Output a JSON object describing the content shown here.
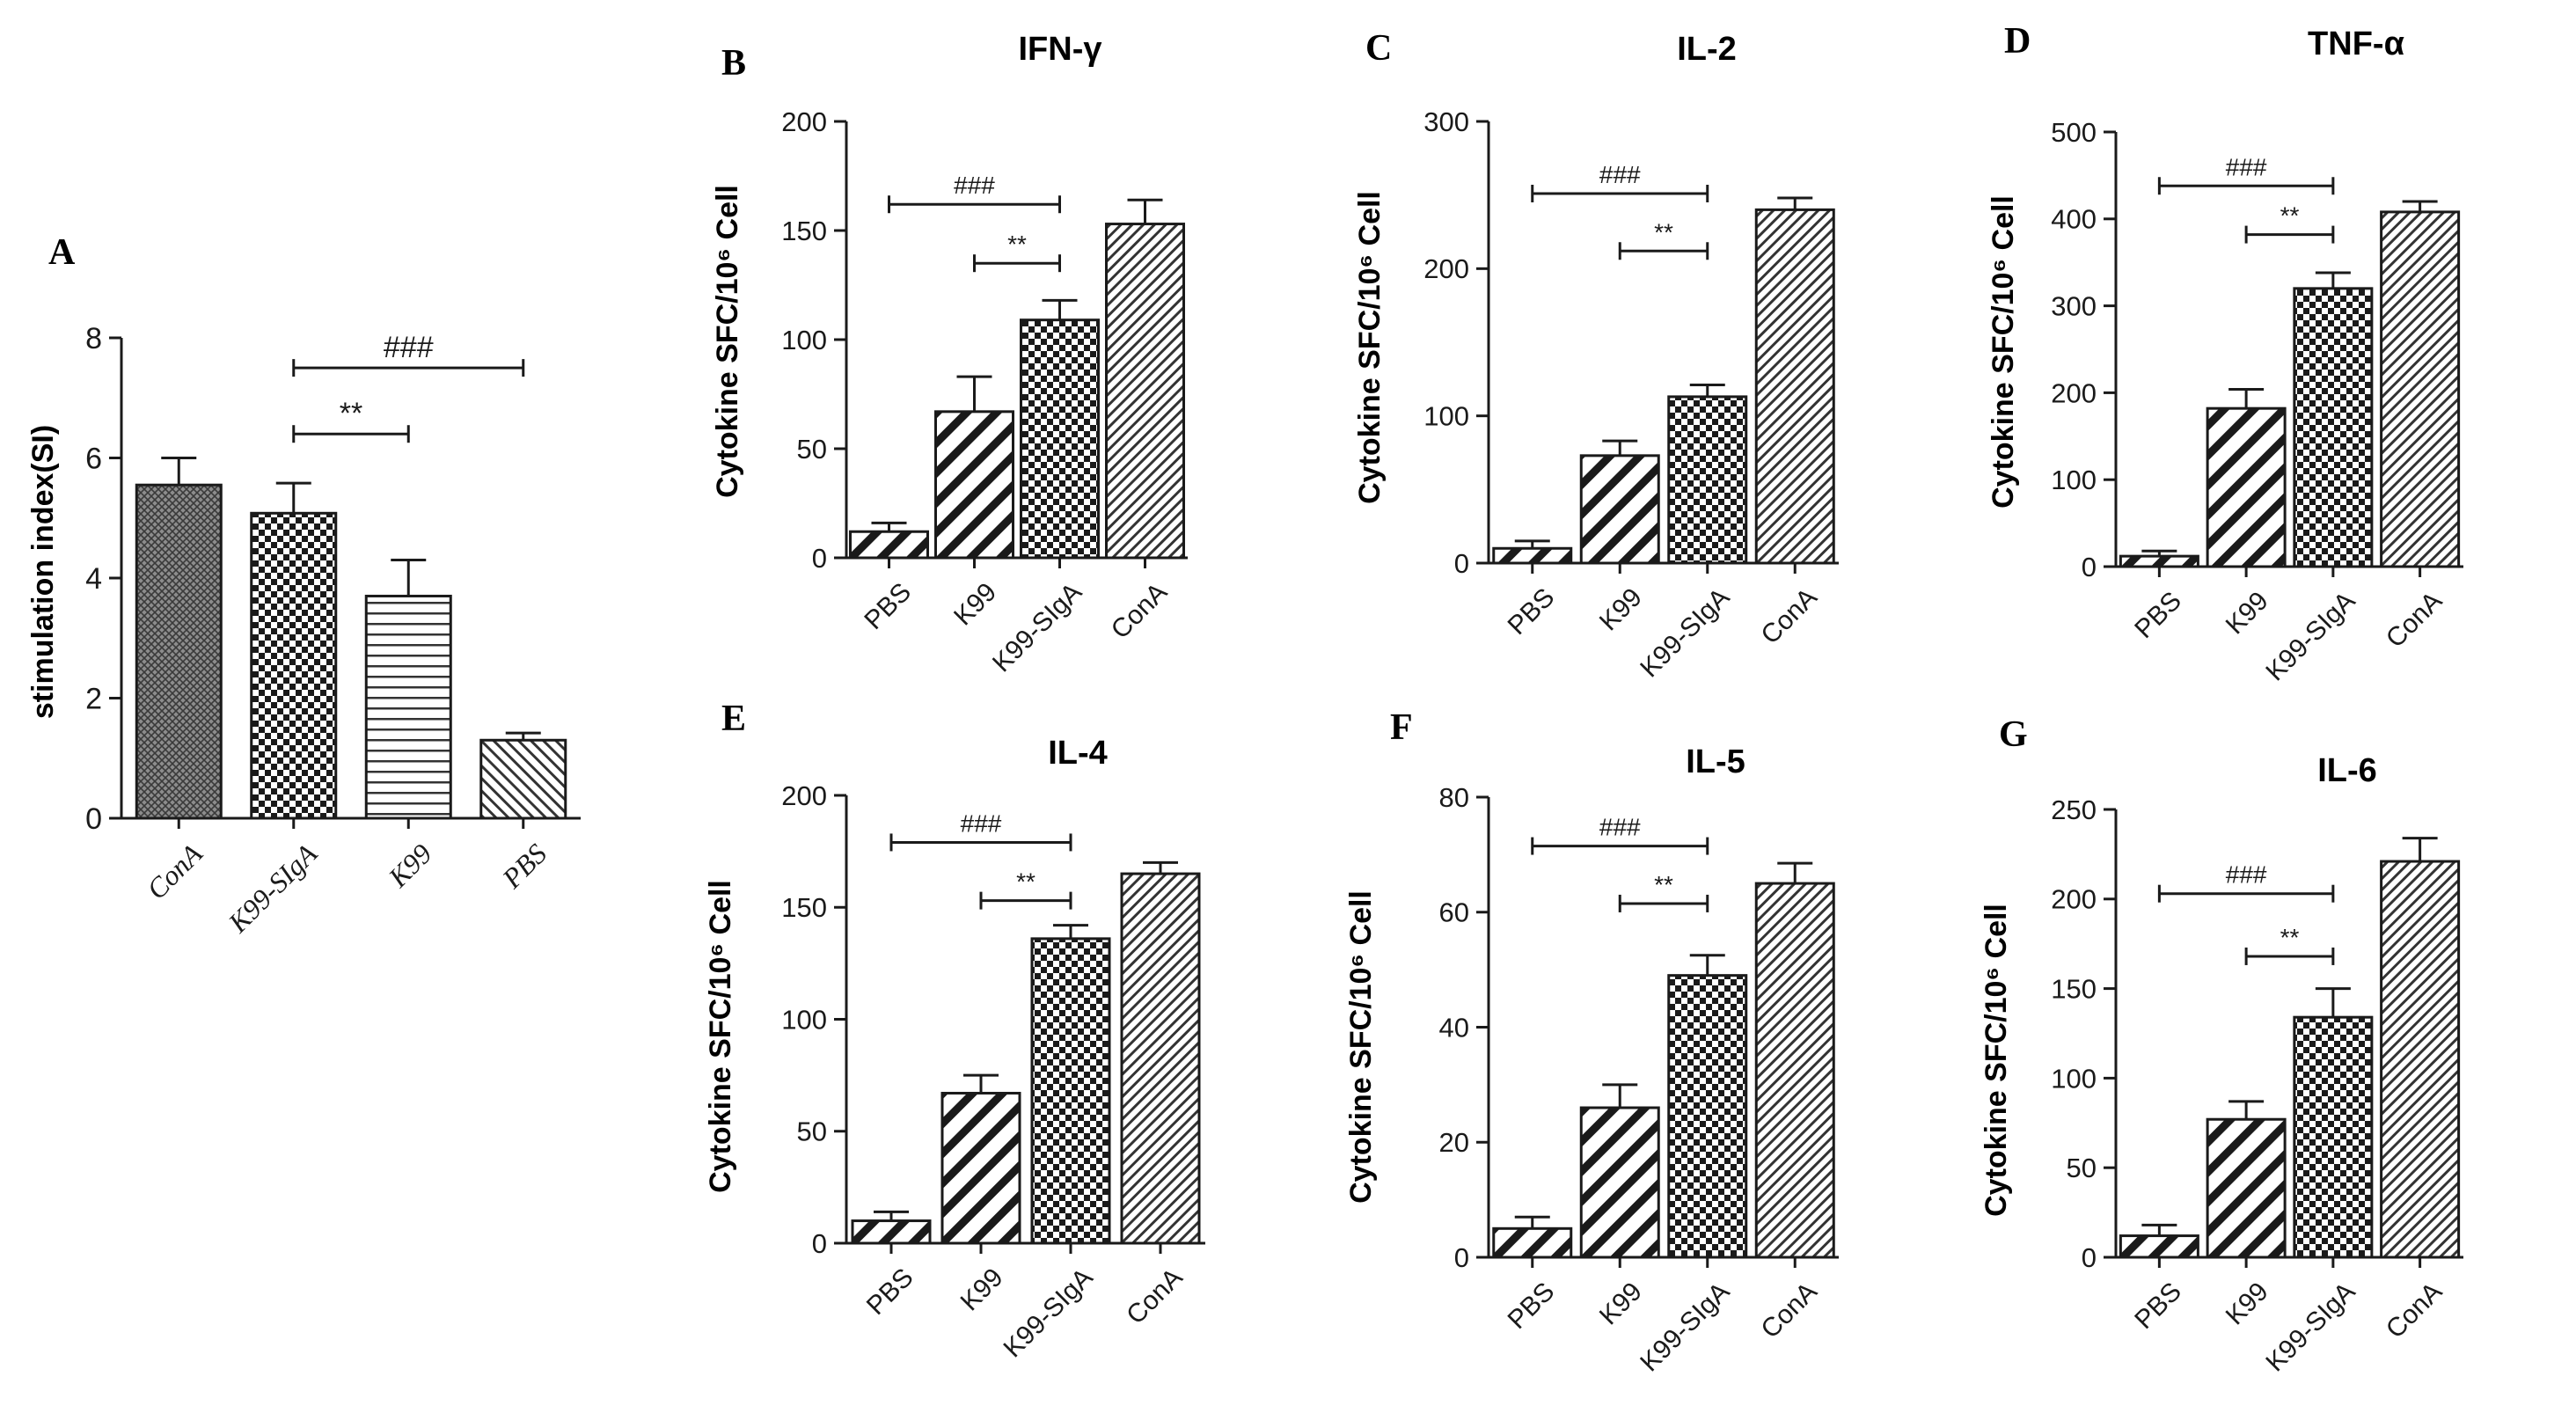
{
  "colors": {
    "ink": "#1a1a1a",
    "background": "#ffffff"
  },
  "chart_data": [
    {
      "panel": "A",
      "type": "bar",
      "title": "",
      "xlabel": "",
      "ylabel": "stimulation index(SI)",
      "categories": [
        "ConA",
        "K99-SIgA",
        "K99",
        "PBS"
      ],
      "values": [
        5.55,
        5.08,
        3.7,
        1.3
      ],
      "errors": [
        0.45,
        0.5,
        0.6,
        0.12
      ],
      "patterns": [
        "cross-fine",
        "checker",
        "horizontal",
        "diag-right"
      ],
      "ylim": [
        0,
        8
      ],
      "yticks": [
        0,
        2,
        4,
        6,
        8
      ],
      "grid": false,
      "significance": [
        {
          "label": "###",
          "from": 1,
          "to": 3,
          "level": 7.5
        },
        {
          "label": "**",
          "from": 1,
          "to": 2,
          "level": 6.4
        }
      ]
    },
    {
      "panel": "B",
      "type": "bar",
      "title": "IFN-γ",
      "xlabel": "",
      "ylabel": "Cytokine SFC/10⁶ Cell",
      "categories": [
        "PBS",
        "K99",
        "K99-SIgA",
        "ConA"
      ],
      "values": [
        12,
        67,
        109,
        153
      ],
      "errors": [
        4,
        16,
        9,
        11
      ],
      "patterns": [
        "diag-thick",
        "diag-thick",
        "checker",
        "diag-fine"
      ],
      "ylim": [
        0,
        200
      ],
      "yticks": [
        0,
        50,
        100,
        150,
        200
      ],
      "grid": false,
      "significance": [
        {
          "label": "###",
          "from": 0,
          "to": 2,
          "level": 162
        },
        {
          "label": "**",
          "from": 1,
          "to": 2,
          "level": 135
        }
      ]
    },
    {
      "panel": "C",
      "type": "bar",
      "title": "IL-2",
      "xlabel": "",
      "ylabel": "Cytokine SFC/10⁶ Cell",
      "categories": [
        "PBS",
        "K99",
        "K99-SIgA",
        "ConA"
      ],
      "values": [
        10,
        73,
        113,
        240
      ],
      "errors": [
        5,
        10,
        8,
        8
      ],
      "patterns": [
        "diag-thick",
        "diag-thick",
        "checker",
        "diag-fine"
      ],
      "ylim": [
        0,
        300
      ],
      "yticks": [
        0,
        100,
        200,
        300
      ],
      "grid": false,
      "significance": [
        {
          "label": "###",
          "from": 0,
          "to": 2,
          "level": 251
        },
        {
          "label": "**",
          "from": 1,
          "to": 2,
          "level": 212
        }
      ]
    },
    {
      "panel": "D",
      "type": "bar",
      "title": "TNF-α",
      "xlabel": "",
      "ylabel": "Cytokine SFC/10⁶ Cell",
      "categories": [
        "PBS",
        "K99",
        "K99-SIgA",
        "ConA"
      ],
      "values": [
        12,
        182,
        320,
        408
      ],
      "errors": [
        6,
        22,
        18,
        12
      ],
      "patterns": [
        "diag-thick",
        "diag-thick",
        "checker",
        "diag-fine"
      ],
      "ylim": [
        0,
        500
      ],
      "yticks": [
        0,
        100,
        200,
        300,
        400,
        500
      ],
      "grid": false,
      "significance": [
        {
          "label": "###",
          "from": 0,
          "to": 2,
          "level": 438
        },
        {
          "label": "**",
          "from": 1,
          "to": 2,
          "level": 382
        }
      ]
    },
    {
      "panel": "E",
      "type": "bar",
      "title": "IL-4",
      "xlabel": "",
      "ylabel": "Cytokine SFC/10⁶ Cell",
      "categories": [
        "PBS",
        "K99",
        "K99-SIgA",
        "ConA"
      ],
      "values": [
        10,
        67,
        136,
        165
      ],
      "errors": [
        4,
        8,
        6,
        5
      ],
      "patterns": [
        "diag-thick",
        "diag-thick",
        "checker",
        "diag-fine"
      ],
      "ylim": [
        0,
        200
      ],
      "yticks": [
        0,
        50,
        100,
        150,
        200
      ],
      "grid": false,
      "significance": [
        {
          "label": "###",
          "from": 0,
          "to": 2,
          "level": 179
        },
        {
          "label": "**",
          "from": 1,
          "to": 2,
          "level": 153
        }
      ]
    },
    {
      "panel": "F",
      "type": "bar",
      "title": "IL-5",
      "xlabel": "",
      "ylabel": "Cytokine SFC/10⁶ Cell",
      "categories": [
        "PBS",
        "K99",
        "K99-SIgA",
        "ConA"
      ],
      "values": [
        5,
        26,
        49,
        65
      ],
      "errors": [
        2,
        4,
        3.5,
        3.5
      ],
      "patterns": [
        "diag-thick",
        "diag-thick",
        "checker",
        "diag-fine"
      ],
      "ylim": [
        0,
        80
      ],
      "yticks": [
        0,
        20,
        40,
        60,
        80
      ],
      "grid": false,
      "significance": [
        {
          "label": "###",
          "from": 0,
          "to": 2,
          "level": 71.5
        },
        {
          "label": "**",
          "from": 1,
          "to": 2,
          "level": 61.5
        }
      ]
    },
    {
      "panel": "G",
      "type": "bar",
      "title": "IL-6",
      "xlabel": "",
      "ylabel": "Cytokine SFC/10⁶ Cell",
      "categories": [
        "PBS",
        "K99",
        "K99-SIgA",
        "ConA"
      ],
      "values": [
        12,
        77,
        134,
        221
      ],
      "errors": [
        6,
        10,
        16,
        13
      ],
      "patterns": [
        "diag-thick",
        "diag-thick",
        "checker",
        "diag-fine"
      ],
      "ylim": [
        0,
        250
      ],
      "yticks": [
        0,
        50,
        100,
        150,
        200,
        250
      ],
      "grid": false,
      "significance": [
        {
          "label": "###",
          "from": 0,
          "to": 2,
          "level": 203
        },
        {
          "label": "**",
          "from": 1,
          "to": 2,
          "level": 168
        }
      ]
    }
  ]
}
